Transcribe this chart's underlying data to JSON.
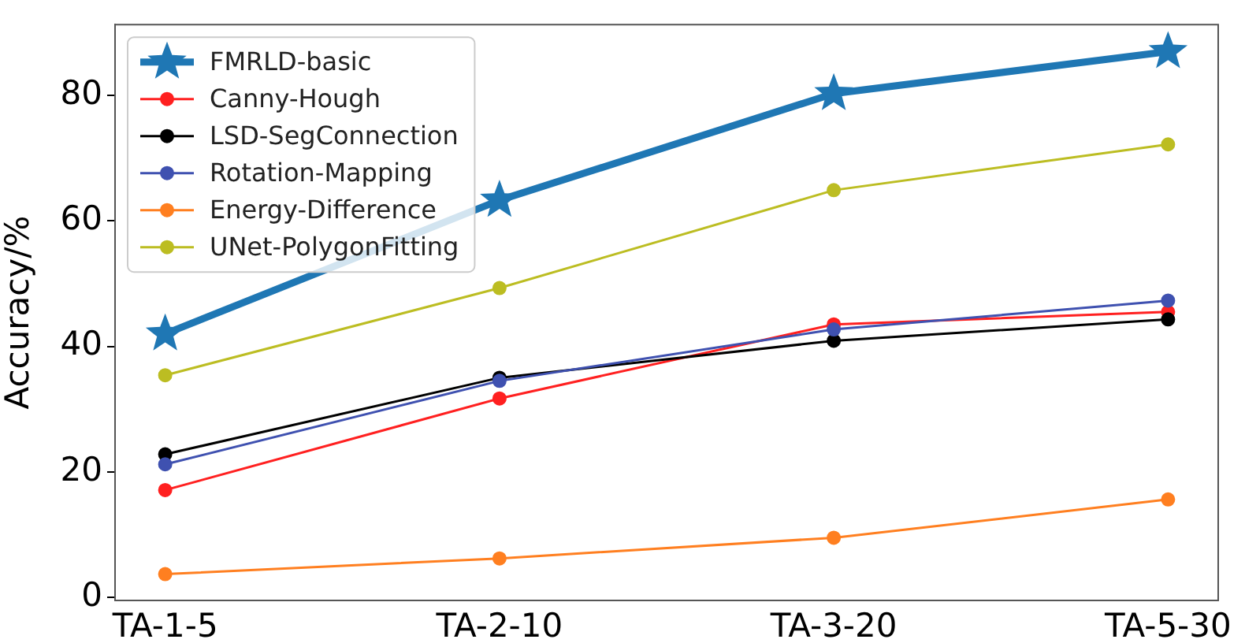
{
  "chart_data": {
    "type": "line",
    "ylabel": "Accuracy/%",
    "categories": [
      "TA-1-5",
      "TA-2-10",
      "TA-3-20",
      "TA-5-30"
    ],
    "series": [
      {
        "name": "FMRLD-basic",
        "color": "#1f77b4",
        "marker": "star",
        "values": [
          42,
          63.3,
          80.3,
          87
        ]
      },
      {
        "name": "Canny-Hough",
        "color": "#ff2020",
        "values": [
          17.1,
          31.7,
          43.5,
          45.5
        ]
      },
      {
        "name": "LSD-SegConnection",
        "color": "#000000",
        "values": [
          22.8,
          35.0,
          40.9,
          44.3
        ]
      },
      {
        "name": "Rotation-Mapping",
        "color": "#3f51b0",
        "values": [
          21.2,
          34.5,
          42.7,
          47.3
        ]
      },
      {
        "name": "Energy-Difference",
        "color": "#ff7f20",
        "values": [
          3.7,
          6.2,
          9.5,
          15.6
        ]
      },
      {
        "name": "UNet-PolygonFitting",
        "color": "#bcbd22",
        "values": [
          35.4,
          49.3,
          64.9,
          72.2
        ]
      }
    ],
    "ylim": [
      -0.5,
      91.3
    ],
    "yticks": [
      0,
      20,
      40,
      60,
      80
    ],
    "marker": "circle",
    "line_style": "solid",
    "grid": false,
    "legend": "top left"
  }
}
